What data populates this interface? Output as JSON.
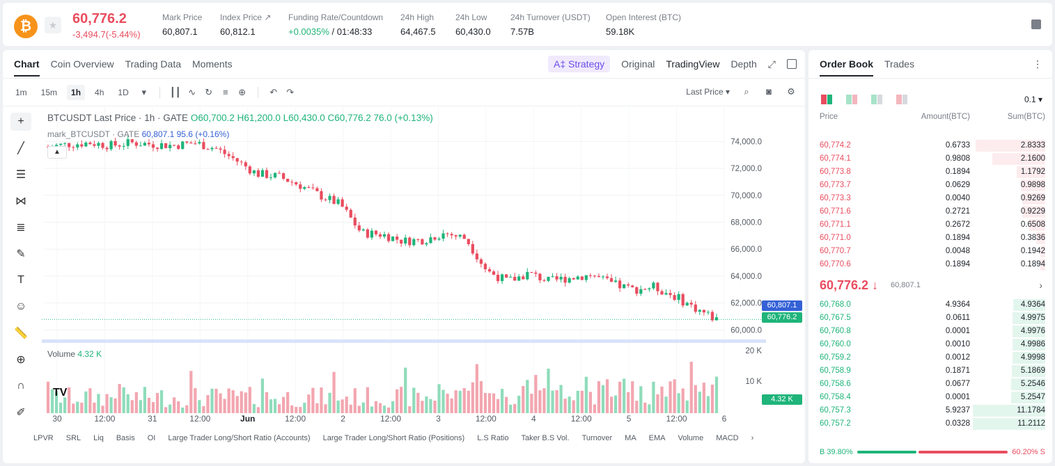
{
  "header": {
    "coin_symbol": "₿",
    "last_price": "60,776.2",
    "change": "-3,494.7(-5.44%)",
    "stats": [
      {
        "label": "Mark Price",
        "value": "60,807.1"
      },
      {
        "label": "Index Price ↗",
        "value": "60,812.1"
      },
      {
        "label": "Funding Rate/Countdown",
        "value_green": "+0.0035%",
        "value": " / 01:48:33"
      },
      {
        "label": "24h High",
        "value": "64,467.5"
      },
      {
        "label": "24h Low",
        "value": "60,430.0"
      },
      {
        "label": "24h Turnover (USDT)",
        "value": "7.57B"
      },
      {
        "label": "Open Interest (BTC)",
        "value": "59.18K"
      }
    ]
  },
  "chart_tabs": [
    "Chart",
    "Coin Overview",
    "Trading Data",
    "Moments"
  ],
  "view_tabs": {
    "strategy": "A‡ Strategy",
    "original": "Original",
    "tradingview": "TradingView",
    "depth": "Depth"
  },
  "intervals": [
    "1m",
    "15m",
    "1h",
    "4h",
    "1D"
  ],
  "active_interval": "1h",
  "price_type": "Last Price",
  "legend": {
    "main_prefix": "BTCUSDT Last Price · 1h · GATE",
    "ohlc": "O60,700.2  H61,200.0  L60,430.0  C60,776.2  76.0 (+0.13%)",
    "mark_prefix": "mark_BTCUSDT · GATE",
    "mark_values": "60,807.1  95.6 (+0.16%)",
    "volume_label": "Volume",
    "volume_value": "4.32 K"
  },
  "price_tags": {
    "mark": "60,807.1",
    "last": "60,776.2",
    "volume": "4.32 K"
  },
  "indicators": [
    "LPVR",
    "SRL",
    "Liq",
    "Basis",
    "OI",
    "Large Trader Long/Short Ratio (Accounts)",
    "Large Trader Long/Short Ratio (Positions)",
    "L.S Ratio",
    "Taker B.S Vol.",
    "Turnover",
    "MA",
    "EMA",
    "Volume",
    "MACD"
  ],
  "tv_logo": "TV",
  "chart_data": {
    "type": "candlestick",
    "y_ticks": [
      "74,000.0",
      "72,000.0",
      "70,000.0",
      "68,000.0",
      "66,000.0",
      "64,000.0",
      "62,000.0",
      "60,000.0"
    ],
    "ylim": [
      59500,
      75000
    ],
    "volume_ticks": [
      "20 K",
      "10 K"
    ],
    "x_ticks": [
      "30",
      "12:00",
      "31",
      "12:00",
      "Jun",
      "12:00",
      "2",
      "12:00",
      "3",
      "12:00",
      "4",
      "12:00",
      "5",
      "12:00",
      "6"
    ],
    "trend_close": [
      73600,
      73800,
      73900,
      73700,
      73900,
      73800,
      73700,
      73900,
      73500,
      72600,
      71600,
      71400,
      70800,
      70000,
      69300,
      67200,
      67100,
      66600,
      66700,
      67200,
      66800,
      64400,
      63600,
      64200,
      63600,
      63900,
      64100,
      63400,
      63000,
      63200,
      62500,
      61600,
      60776
    ]
  },
  "orderbook": {
    "tabs": [
      "Order Book",
      "Trades"
    ],
    "precision": "0.1 ▾",
    "headers": [
      "Price",
      "Amount(BTC)",
      "Sum(BTC)"
    ],
    "asks": [
      {
        "price": "60,774.2",
        "amount": "0.6733",
        "sum": "2.8333",
        "depth": 0.96
      },
      {
        "price": "60,774.1",
        "amount": "0.9808",
        "sum": "2.1600",
        "depth": 0.73
      },
      {
        "price": "60,773.8",
        "amount": "0.1894",
        "sum": "1.1792",
        "depth": 0.4
      },
      {
        "price": "60,773.7",
        "amount": "0.0629",
        "sum": "0.9898",
        "depth": 0.34
      },
      {
        "price": "60,773.3",
        "amount": "0.0040",
        "sum": "0.9269",
        "depth": 0.32
      },
      {
        "price": "60,771.6",
        "amount": "0.2721",
        "sum": "0.9229",
        "depth": 0.32
      },
      {
        "price": "60,771.1",
        "amount": "0.2672",
        "sum": "0.6508",
        "depth": 0.22
      },
      {
        "price": "60,771.0",
        "amount": "0.1894",
        "sum": "0.3836",
        "depth": 0.13
      },
      {
        "price": "60,770.7",
        "amount": "0.0048",
        "sum": "0.1942",
        "depth": 0.07
      },
      {
        "price": "60,770.6",
        "amount": "0.1894",
        "sum": "0.1894",
        "depth": 0.07
      }
    ],
    "mid_price": "60,776.2 ↓",
    "mid_mark": "60,807.1",
    "bids": [
      {
        "price": "60,768.0",
        "amount": "4.9364",
        "sum": "4.9364",
        "depth": 0.44
      },
      {
        "price": "60,767.5",
        "amount": "0.0611",
        "sum": "4.9975",
        "depth": 0.45
      },
      {
        "price": "60,760.8",
        "amount": "0.0001",
        "sum": "4.9976",
        "depth": 0.45
      },
      {
        "price": "60,760.0",
        "amount": "0.0010",
        "sum": "4.9986",
        "depth": 0.45
      },
      {
        "price": "60,759.2",
        "amount": "0.0012",
        "sum": "4.9998",
        "depth": 0.45
      },
      {
        "price": "60,758.9",
        "amount": "0.1871",
        "sum": "5.1869",
        "depth": 0.46
      },
      {
        "price": "60,758.6",
        "amount": "0.0677",
        "sum": "5.2546",
        "depth": 0.47
      },
      {
        "price": "60,758.4",
        "amount": "0.0001",
        "sum": "5.2547",
        "depth": 0.47
      },
      {
        "price": "60,757.3",
        "amount": "5.9237",
        "sum": "11.1784",
        "depth": 1.0
      },
      {
        "price": "60,757.2",
        "amount": "0.0328",
        "sum": "11.2112",
        "depth": 1.0
      }
    ],
    "buy_ratio": "B 39.80%",
    "sell_ratio": "60.20% S",
    "buy_fraction": 0.398
  },
  "colors": {
    "up": "#1fb47a",
    "down": "#e94d5f",
    "accent": "#6b4de6",
    "mark": "#3461d6"
  }
}
